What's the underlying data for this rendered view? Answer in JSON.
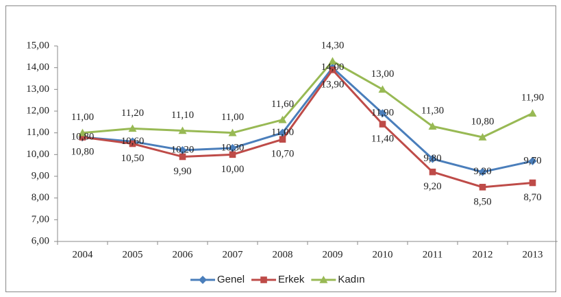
{
  "chart_data": {
    "type": "line",
    "categories": [
      "2004",
      "2005",
      "2006",
      "2007",
      "2008",
      "2009",
      "2010",
      "2011",
      "2012",
      "2013"
    ],
    "series": [
      {
        "name": "Genel",
        "color": "#4a7ebb",
        "marker": "diamond",
        "values": [
          10.8,
          10.6,
          10.2,
          10.3,
          11.0,
          14.0,
          11.9,
          9.8,
          9.2,
          9.7
        ],
        "value_labels": [
          "10,80",
          "10,60",
          "10,20",
          "10,30",
          "11,00",
          "14,00",
          "11,90",
          "9,80",
          "9,20",
          "9,70"
        ]
      },
      {
        "name": "Erkek",
        "color": "#be4b48",
        "marker": "square",
        "values": [
          10.8,
          10.5,
          9.9,
          10.0,
          10.7,
          13.9,
          11.4,
          9.2,
          8.5,
          8.7
        ],
        "value_labels": [
          "10,80",
          "10,50",
          "9,90",
          "10,00",
          "10,70",
          "13,90",
          "11,40",
          "9,20",
          "8,50",
          "8,70"
        ]
      },
      {
        "name": "Kadın",
        "color": "#98b954",
        "marker": "triangle",
        "values": [
          11.0,
          11.2,
          11.1,
          11.0,
          11.6,
          14.3,
          13.0,
          11.3,
          10.8,
          11.9
        ],
        "value_labels": [
          "11,00",
          "11,20",
          "11,10",
          "11,00",
          "11,60",
          "14,30",
          "13,00",
          "11,30",
          "10,80",
          "11,90"
        ]
      }
    ],
    "ylim": [
      6,
      15
    ],
    "yticks": [
      {
        "value": 6,
        "label": "6,00"
      },
      {
        "value": 7,
        "label": "7,00"
      },
      {
        "value": 8,
        "label": "8,00"
      },
      {
        "value": 9,
        "label": "9,00"
      },
      {
        "value": 10,
        "label": "10,00"
      },
      {
        "value": 11,
        "label": "11,00"
      },
      {
        "value": 12,
        "label": "12,00"
      },
      {
        "value": 13,
        "label": "13,00"
      },
      {
        "value": 14,
        "label": "14,00"
      },
      {
        "value": 15,
        "label": "15,00"
      }
    ],
    "legend": "bottom"
  }
}
